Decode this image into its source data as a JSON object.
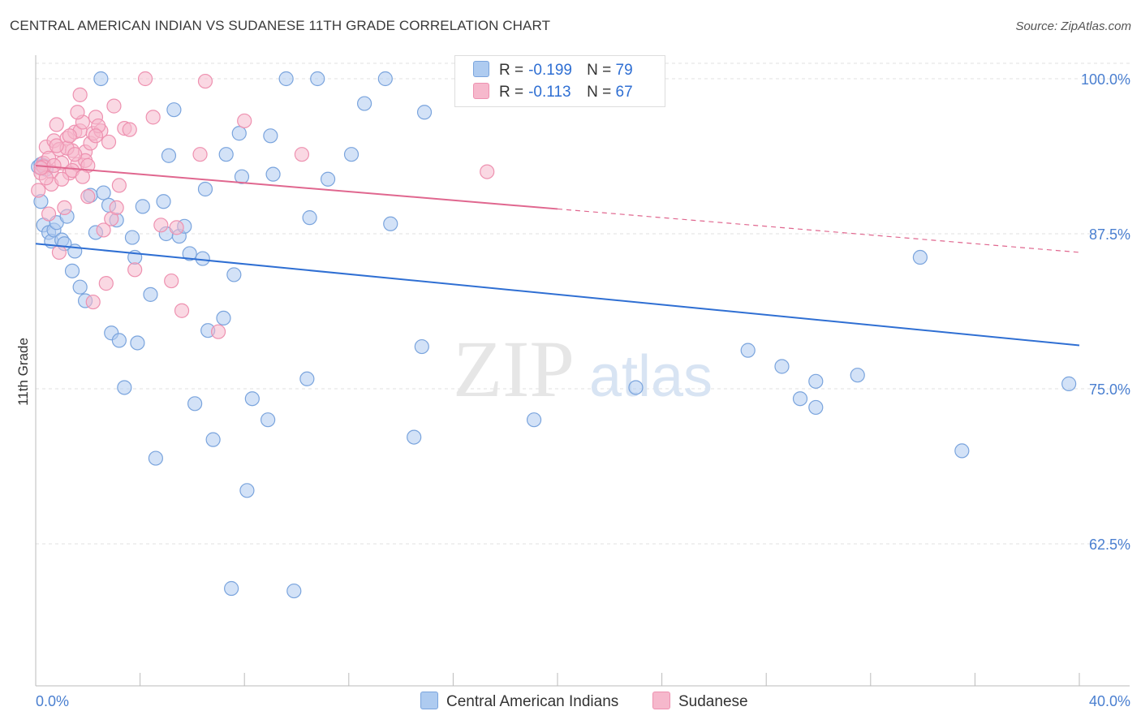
{
  "title": "CENTRAL AMERICAN INDIAN VS SUDANESE 11TH GRADE CORRELATION CHART",
  "source": "Source: ZipAtlas.com",
  "watermark": {
    "zip": "ZIP",
    "atlas": "atlas"
  },
  "legend": {
    "rows": [
      {
        "r_label": "R =",
        "r_value": "-0.199",
        "n_label": "N =",
        "n_value": "79"
      },
      {
        "r_label": "R =",
        "r_value": "-0.113",
        "n_label": "N =",
        "n_value": "67"
      }
    ]
  },
  "bottom_legend": {
    "blue_label": "Central American Indians",
    "pink_label": "Sudanese"
  },
  "colors": {
    "blue_fill": "#aecbf0",
    "blue_stroke": "#7aa4dd",
    "blue_line": "#2f6fd3",
    "pink_fill": "#f6b8cc",
    "pink_stroke": "#ee91b0",
    "pink_line": "#e0678f",
    "grid": "#e2e2e2",
    "axis_text": "#4a7fd0"
  },
  "chart_data": {
    "type": "scatter",
    "title": "CENTRAL AMERICAN INDIAN VS SUDANESE 11TH GRADE CORRELATION CHART",
    "xlabel": "",
    "ylabel": "11th Grade",
    "xlim": [
      0,
      40
    ],
    "ylim": [
      50.0,
      100.0
    ],
    "x_tick_labels": [
      "0.0%",
      "40.0%"
    ],
    "y_ticks": [
      62.5,
      75.0,
      87.5,
      100.0
    ],
    "y_tick_labels": [
      "62.5%",
      "75.0%",
      "87.5%",
      "100.0%"
    ],
    "series": [
      {
        "name": "Central American Indians",
        "R": -0.199,
        "N": 79,
        "trend": {
          "x0": 0,
          "y0": 86.7,
          "x1": 40,
          "y1": 78.5,
          "solid_to": 40
        },
        "points": [
          [
            0.1,
            92.9
          ],
          [
            0.2,
            90.1
          ],
          [
            0.3,
            88.2
          ],
          [
            0.5,
            87.6
          ],
          [
            0.6,
            86.9
          ],
          [
            0.7,
            87.8
          ],
          [
            0.8,
            88.4
          ],
          [
            1.0,
            87.0
          ],
          [
            1.2,
            88.9
          ],
          [
            1.4,
            84.5
          ],
          [
            1.5,
            86.1
          ],
          [
            1.7,
            83.2
          ],
          [
            1.9,
            82.1
          ],
          [
            2.1,
            90.6
          ],
          [
            2.3,
            87.6
          ],
          [
            2.6,
            90.8
          ],
          [
            2.8,
            89.8
          ],
          [
            2.9,
            79.5
          ],
          [
            3.1,
            88.6
          ],
          [
            3.2,
            78.9
          ],
          [
            3.4,
            75.1
          ],
          [
            3.7,
            87.2
          ],
          [
            3.8,
            85.6
          ],
          [
            3.9,
            78.7
          ],
          [
            4.1,
            89.7
          ],
          [
            4.4,
            82.6
          ],
          [
            4.6,
            69.4
          ],
          [
            4.9,
            90.1
          ],
          [
            5.0,
            87.5
          ],
          [
            5.1,
            93.8
          ],
          [
            5.3,
            97.5
          ],
          [
            5.5,
            87.3
          ],
          [
            5.7,
            88.1
          ],
          [
            5.9,
            85.9
          ],
          [
            6.1,
            73.8
          ],
          [
            6.4,
            85.5
          ],
          [
            6.5,
            91.1
          ],
          [
            6.6,
            79.7
          ],
          [
            6.8,
            70.9
          ],
          [
            7.2,
            80.7
          ],
          [
            7.3,
            93.9
          ],
          [
            7.5,
            58.9
          ],
          [
            7.6,
            84.2
          ],
          [
            7.8,
            95.6
          ],
          [
            7.9,
            92.1
          ],
          [
            8.1,
            66.8
          ],
          [
            8.3,
            74.2
          ],
          [
            8.9,
            72.5
          ],
          [
            9.0,
            95.4
          ],
          [
            9.1,
            92.3
          ],
          [
            9.6,
            100.0
          ],
          [
            9.9,
            58.7
          ],
          [
            10.4,
            75.8
          ],
          [
            10.5,
            88.8
          ],
          [
            10.8,
            100.0
          ],
          [
            11.2,
            91.9
          ],
          [
            12.1,
            93.9
          ],
          [
            12.6,
            98.0
          ],
          [
            13.4,
            100.0
          ],
          [
            13.6,
            88.3
          ],
          [
            14.5,
            71.1
          ],
          [
            14.8,
            78.4
          ],
          [
            14.9,
            97.3
          ],
          [
            19.1,
            72.5
          ],
          [
            23.0,
            75.1
          ],
          [
            27.3,
            78.1
          ],
          [
            28.6,
            76.8
          ],
          [
            29.3,
            74.2
          ],
          [
            29.9,
            73.5
          ],
          [
            29.9,
            75.6
          ],
          [
            31.5,
            76.1
          ],
          [
            33.9,
            85.6
          ],
          [
            35.5,
            70.0
          ],
          [
            39.6,
            75.4
          ],
          [
            0.2,
            93.1
          ],
          [
            0.4,
            92.7
          ],
          [
            1.1,
            86.7
          ],
          [
            2.5,
            100.0
          ],
          [
            0.3,
            93.0
          ]
        ]
      },
      {
        "name": "Sudanese",
        "R": -0.113,
        "N": 67,
        "trend": {
          "x0": 0,
          "y0": 93.0,
          "x1": 40,
          "y1": 86.0,
          "solid_to": 20
        },
        "points": [
          [
            0.1,
            91.0
          ],
          [
            0.2,
            92.4
          ],
          [
            0.3,
            93.2
          ],
          [
            0.4,
            94.5
          ],
          [
            0.5,
            93.6
          ],
          [
            0.6,
            92.5
          ],
          [
            0.7,
            95.0
          ],
          [
            0.8,
            96.3
          ],
          [
            0.9,
            94.3
          ],
          [
            1.0,
            93.2
          ],
          [
            1.1,
            89.6
          ],
          [
            1.2,
            95.2
          ],
          [
            1.3,
            92.4
          ],
          [
            1.4,
            94.2
          ],
          [
            1.5,
            95.7
          ],
          [
            1.6,
            93.1
          ],
          [
            1.7,
            95.8
          ],
          [
            1.8,
            96.5
          ],
          [
            1.9,
            94.1
          ],
          [
            2.0,
            90.5
          ],
          [
            2.1,
            94.8
          ],
          [
            2.2,
            95.6
          ],
          [
            2.3,
            96.9
          ],
          [
            2.5,
            95.8
          ],
          [
            2.6,
            87.8
          ],
          [
            2.7,
            83.5
          ],
          [
            2.9,
            88.7
          ],
          [
            3.0,
            97.8
          ],
          [
            3.1,
            89.6
          ],
          [
            3.2,
            91.4
          ],
          [
            3.4,
            96.0
          ],
          [
            3.6,
            95.9
          ],
          [
            3.8,
            84.6
          ],
          [
            4.2,
            100.0
          ],
          [
            4.5,
            96.9
          ],
          [
            4.8,
            88.2
          ],
          [
            5.2,
            83.7
          ],
          [
            5.4,
            88.0
          ],
          [
            5.6,
            81.3
          ],
          [
            6.3,
            93.9
          ],
          [
            6.5,
            99.8
          ],
          [
            7.0,
            79.6
          ],
          [
            8.0,
            96.6
          ],
          [
            10.2,
            93.9
          ],
          [
            17.3,
            92.5
          ],
          [
            0.3,
            92.9
          ],
          [
            0.6,
            91.5
          ],
          [
            1.2,
            94.4
          ],
          [
            1.9,
            93.4
          ],
          [
            2.4,
            96.2
          ],
          [
            0.9,
            86.0
          ],
          [
            1.5,
            93.9
          ],
          [
            1.7,
            98.7
          ],
          [
            2.2,
            82.0
          ],
          [
            0.5,
            89.1
          ],
          [
            0.8,
            94.6
          ],
          [
            1.3,
            95.4
          ],
          [
            1.6,
            97.3
          ],
          [
            2.0,
            93.0
          ],
          [
            2.8,
            94.9
          ],
          [
            0.4,
            92.0
          ],
          [
            0.7,
            93.0
          ],
          [
            1.0,
            91.9
          ],
          [
            1.4,
            92.6
          ],
          [
            1.8,
            92.1
          ],
          [
            2.3,
            95.4
          ],
          [
            0.2,
            92.8
          ]
        ]
      }
    ]
  }
}
